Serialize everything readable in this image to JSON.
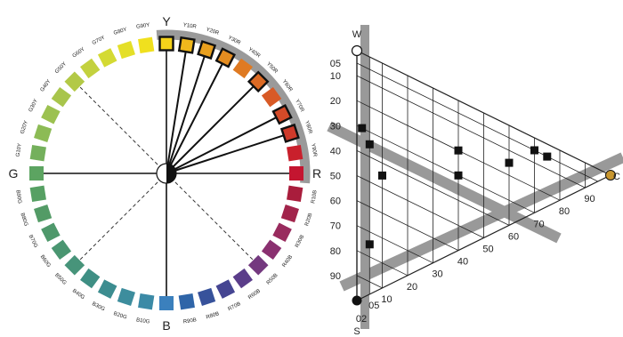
{
  "circle": {
    "axis_labels": {
      "top": "Y",
      "right": "R",
      "bottom": "B",
      "left": "G"
    },
    "hues": [
      {
        "label": "Y",
        "color": "#f5d21a",
        "outline": true
      },
      {
        "label": "Y10R",
        "color": "#f0b81c",
        "outline": true
      },
      {
        "label": "Y20R",
        "color": "#e9a01e",
        "outline": true
      },
      {
        "label": "Y30R",
        "color": "#e48c20",
        "outline": true
      },
      {
        "label": "Y40R",
        "color": "#df7a22",
        "outline": false
      },
      {
        "label": "Y50R",
        "color": "#db6a24",
        "outline": true
      },
      {
        "label": "Y60R",
        "color": "#d85a26",
        "outline": false
      },
      {
        "label": "Y70R",
        "color": "#d44a28",
        "outline": true
      },
      {
        "label": "Y80R",
        "color": "#cf3a2a",
        "outline": true
      },
      {
        "label": "Y90R",
        "color": "#c9202c",
        "outline": false
      },
      {
        "label": "R",
        "color": "#c41530",
        "outline": false
      },
      {
        "label": "R10B",
        "color": "#a91d3c",
        "outline": false
      },
      {
        "label": "R20B",
        "color": "#a2244b",
        "outline": false
      },
      {
        "label": "R30B",
        "color": "#992b5e",
        "outline": false
      },
      {
        "label": "R40B",
        "color": "#8a3070",
        "outline": false
      },
      {
        "label": "R50B",
        "color": "#74397f",
        "outline": false
      },
      {
        "label": "R60B",
        "color": "#5b3d8a",
        "outline": false
      },
      {
        "label": "R70B",
        "color": "#454592",
        "outline": false
      },
      {
        "label": "R80B",
        "color": "#37529b",
        "outline": false
      },
      {
        "label": "R90B",
        "color": "#2f65a8",
        "outline": false
      },
      {
        "label": "B",
        "color": "#3b80bd",
        "outline": false
      },
      {
        "label": "B10G",
        "color": "#3b8aa6",
        "outline": false
      },
      {
        "label": "B20G",
        "color": "#3d8d9d",
        "outline": false
      },
      {
        "label": "B30G",
        "color": "#3c8d90",
        "outline": false
      },
      {
        "label": "B40G",
        "color": "#3f8f84",
        "outline": false
      },
      {
        "label": "B50G",
        "color": "#47947a",
        "outline": false
      },
      {
        "label": "B60G",
        "color": "#4a9671",
        "outline": false
      },
      {
        "label": "B70G",
        "color": "#4e986b",
        "outline": false
      },
      {
        "label": "B80G",
        "color": "#539b66",
        "outline": false
      },
      {
        "label": "B90G",
        "color": "#56a063",
        "outline": false
      },
      {
        "label": "G",
        "color": "#5ca461",
        "outline": false
      },
      {
        "label": "G10Y",
        "color": "#74b05c",
        "outline": false
      },
      {
        "label": "G20Y",
        "color": "#8cbb55",
        "outline": false
      },
      {
        "label": "G30Y",
        "color": "#9cc150",
        "outline": false
      },
      {
        "label": "G40Y",
        "color": "#a8c54c",
        "outline": false
      },
      {
        "label": "G50Y",
        "color": "#b3c946",
        "outline": false
      },
      {
        "label": "G60Y",
        "color": "#c3d13e",
        "outline": false
      },
      {
        "label": "G70Y",
        "color": "#d4da33",
        "outline": false
      },
      {
        "label": "G80Y",
        "color": "#e4df28",
        "outline": false
      },
      {
        "label": "G90Y",
        "color": "#f0e01e",
        "outline": false
      }
    ]
  },
  "triangle": {
    "vertices": {
      "top": "W",
      "bottom": "S",
      "right": "C"
    },
    "chromaticness_ticks": [
      "05",
      "10",
      "20",
      "30",
      "40",
      "50",
      "60",
      "70",
      "80",
      "90"
    ],
    "blackness_ticks": [
      "05",
      "10",
      "20",
      "30",
      "40",
      "50",
      "60",
      "70",
      "80",
      "90"
    ],
    "blackness_ticks_start_label": "02",
    "whiteness_label_02": "02",
    "markers": [
      {
        "s": 30,
        "c": 2
      },
      {
        "s": 35,
        "c": 5
      },
      {
        "s": 45,
        "c": 10
      },
      {
        "s": 75,
        "c": 5
      },
      {
        "s": 30,
        "c": 40
      },
      {
        "s": 20,
        "c": 40
      },
      {
        "s": 15,
        "c": 60
      },
      {
        "s": 5,
        "c": 70
      },
      {
        "s": 5,
        "c": 75
      }
    ],
    "colors": {
      "c_vertex": "#c8962e",
      "band": "#999999"
    }
  }
}
